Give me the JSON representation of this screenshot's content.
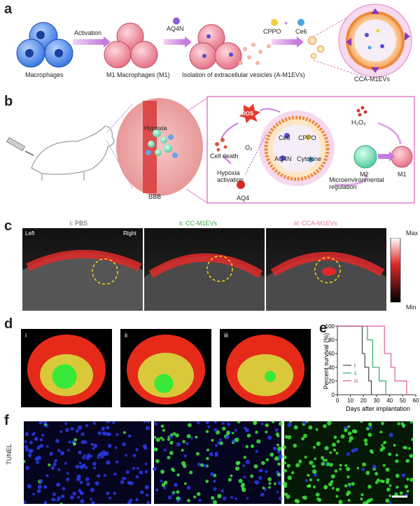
{
  "panel_a": {
    "label": "a",
    "macrophages": "Macrophages",
    "activation": "Activation",
    "m1": "M1 Macrophages (M1)",
    "aq4n": "AQ4N",
    "isolation": "Isolation of extracellular vesicles (A-M1EVs)",
    "cppo": "CPPO",
    "plus": "+",
    "ce6": "Ce6",
    "cca": "CCA-M1EVs"
  },
  "panel_b": {
    "label": "b",
    "hypoxia": "Hypoxia",
    "bbb": "BBB",
    "ros": "ROS",
    "o2": "O₂",
    "cell_death": "Cell death",
    "hypoxia_activation": "Hypoxia activation",
    "aq4": "AQ4",
    "ce6": "Ce6",
    "cppo": "CPPO",
    "aq4n": "AQ4N",
    "cytokine": "Cytokine",
    "h2o2": "H₂O₂",
    "m2": "M2",
    "m1": "M1",
    "micro": "Microenvironmental regulation"
  },
  "panel_c": {
    "label": "c",
    "left": "Left",
    "right": "Right",
    "titles": [
      "i: PBS",
      "ii: CC-M1EVs",
      "iii: CCA-M1EVs"
    ],
    "title_colors": [
      "#555555",
      "#2eaa3c",
      "#e8749a"
    ],
    "scale_max": "Max",
    "scale_min": "Min"
  },
  "panel_d": {
    "label": "d",
    "tags": [
      "i",
      "ii",
      "iii"
    ]
  },
  "panel_e": {
    "label": "e",
    "chart_data": {
      "type": "line",
      "title": "",
      "xlabel": "Days after implantation",
      "ylabel": "Percent survival (%)",
      "xlim": [
        0,
        60
      ],
      "ylim": [
        0,
        100
      ],
      "xticks": [
        0,
        10,
        20,
        30,
        40,
        50,
        60
      ],
      "yticks": [
        0,
        20,
        40,
        60,
        80,
        100
      ],
      "series": [
        {
          "name": "i",
          "color": "#444444",
          "steps": [
            [
              0,
              100
            ],
            [
              19,
              100
            ],
            [
              19,
              60
            ],
            [
              21,
              60
            ],
            [
              21,
              40
            ],
            [
              24,
              40
            ],
            [
              24,
              20
            ],
            [
              26,
              20
            ],
            [
              26,
              0
            ]
          ]
        },
        {
          "name": "ii",
          "color": "#2eaa6a",
          "steps": [
            [
              0,
              100
            ],
            [
              23,
              100
            ],
            [
              23,
              80
            ],
            [
              27,
              80
            ],
            [
              27,
              40
            ],
            [
              32,
              40
            ],
            [
              32,
              20
            ],
            [
              37,
              20
            ],
            [
              37,
              0
            ]
          ]
        },
        {
          "name": "iii",
          "color": "#e05a9a",
          "steps": [
            [
              0,
              100
            ],
            [
              36,
              100
            ],
            [
              36,
              60
            ],
            [
              41,
              60
            ],
            [
              41,
              40
            ],
            [
              44,
              40
            ],
            [
              44,
              20
            ],
            [
              53,
              20
            ],
            [
              53,
              0
            ]
          ]
        }
      ]
    }
  },
  "panel_f": {
    "label": "f",
    "ylabel": "TUNEL"
  },
  "colors": {
    "accent_pink": "#e080c8",
    "arrow_purple": "#c77be0"
  }
}
